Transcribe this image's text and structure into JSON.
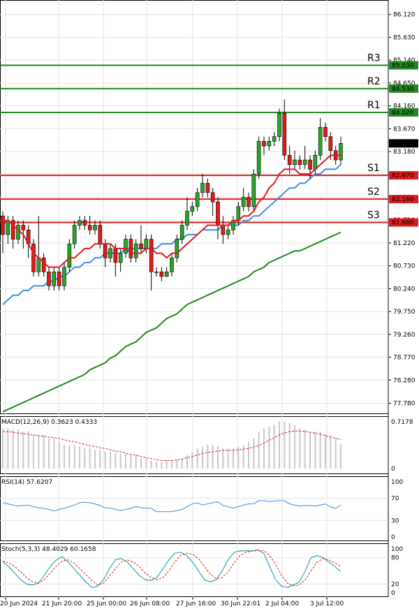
{
  "chart_data": {
    "type": "candlestick",
    "price_axis": {
      "ylim": [
        77.55,
        86.43
      ],
      "ticks": [
        "86.120",
        "85.630",
        "85.140",
        "84.650",
        "84.160",
        "83.670",
        "83.180",
        "82.690",
        "82.200",
        "81.710",
        "81.220",
        "80.730",
        "80.240",
        "79.750",
        "79.260",
        "78.770",
        "78.280",
        "77.780"
      ],
      "current_price": 83.355
    },
    "levels": [
      {
        "name": "R3",
        "price": 85.03,
        "price_label": "85.030",
        "color": "#1f8a1f"
      },
      {
        "name": "R2",
        "price": 84.53,
        "price_label": "84.530",
        "color": "#1f8a1f"
      },
      {
        "name": "R1",
        "price": 84.02,
        "price_label": "84.020",
        "color": "#1f8a1f"
      },
      {
        "name": "S1",
        "price": 82.67,
        "price_label": "82.670",
        "color": "#e01b1b"
      },
      {
        "name": "S2",
        "price": 82.16,
        "price_label": "82.160",
        "color": "#e01b1b"
      },
      {
        "name": "S3",
        "price": 81.66,
        "price_label": "81.660",
        "color": "#e01b1b"
      }
    ],
    "x_labels": [
      "20 Jun 2024",
      "21 Jun 20:00",
      "25 Jun 00:00",
      "26 Jun 08:00",
      "27 Jun 16:00",
      "30 Jun 22:01",
      "2 Jul 04:00",
      "3 Jul 12:00"
    ],
    "candles": [
      [
        81.8,
        81.4,
        81.9,
        81.0
      ],
      [
        81.4,
        81.7,
        81.8,
        81.2
      ],
      [
        81.7,
        81.3,
        81.8,
        81.1
      ],
      [
        81.3,
        81.6,
        81.7,
        81.2
      ],
      [
        81.6,
        81.5,
        81.7,
        81.1
      ],
      [
        81.5,
        81.2,
        81.6,
        80.9
      ],
      [
        81.2,
        80.6,
        81.3,
        80.5
      ],
      [
        80.6,
        80.9,
        81.8,
        80.5
      ],
      [
        80.9,
        80.6,
        81.0,
        80.5
      ],
      [
        80.6,
        80.3,
        80.7,
        80.2
      ],
      [
        80.3,
        80.6,
        80.7,
        80.2
      ],
      [
        80.6,
        80.3,
        80.7,
        80.2
      ],
      [
        80.3,
        80.7,
        80.8,
        80.2
      ],
      [
        80.7,
        81.2,
        81.3,
        80.6
      ],
      [
        81.2,
        81.6,
        81.7,
        81.1
      ],
      [
        81.6,
        81.7,
        81.8,
        81.5
      ],
      [
        81.7,
        81.6,
        81.8,
        81.5
      ],
      [
        81.6,
        81.5,
        81.8,
        81.4
      ],
      [
        81.5,
        81.6,
        81.7,
        81.4
      ],
      [
        81.6,
        81.2,
        81.7,
        81.1
      ],
      [
        81.2,
        80.9,
        81.3,
        80.7
      ],
      [
        80.9,
        81.1,
        81.2,
        80.8
      ],
      [
        81.1,
        80.8,
        81.2,
        80.5
      ],
      [
        80.8,
        81.0,
        81.1,
        80.6
      ],
      [
        81.0,
        81.3,
        81.4,
        80.9
      ],
      [
        81.3,
        80.9,
        81.4,
        80.8
      ],
      [
        80.9,
        81.2,
        81.3,
        80.8
      ],
      [
        81.2,
        81.1,
        81.6,
        81.0
      ],
      [
        81.1,
        81.3,
        81.4,
        81.0
      ],
      [
        81.3,
        80.6,
        81.4,
        80.2
      ],
      [
        80.6,
        80.6,
        80.7,
        80.5
      ],
      [
        80.6,
        80.5,
        80.7,
        80.4
      ],
      [
        80.5,
        80.6,
        80.7,
        80.5
      ],
      [
        80.6,
        80.9,
        81.0,
        80.5
      ],
      [
        80.9,
        81.3,
        81.4,
        80.8
      ],
      [
        81.3,
        81.6,
        81.7,
        81.2
      ],
      [
        81.6,
        81.9,
        82.2,
        81.5
      ],
      [
        81.9,
        82.0,
        82.1,
        81.8
      ],
      [
        82.0,
        82.3,
        82.4,
        81.9
      ],
      [
        82.3,
        82.5,
        82.7,
        82.2
      ],
      [
        82.5,
        82.3,
        82.6,
        82.2
      ],
      [
        82.3,
        82.1,
        82.4,
        81.8
      ],
      [
        82.1,
        81.6,
        82.2,
        81.3
      ],
      [
        81.6,
        81.4,
        81.8,
        81.2
      ],
      [
        81.4,
        81.5,
        81.6,
        81.3
      ],
      [
        81.5,
        81.7,
        81.8,
        81.4
      ],
      [
        81.7,
        82.0,
        82.1,
        81.6
      ],
      [
        82.0,
        82.2,
        82.4,
        81.9
      ],
      [
        82.2,
        82.0,
        82.3,
        81.9
      ],
      [
        82.0,
        82.7,
        82.8,
        81.9
      ],
      [
        82.7,
        83.4,
        83.5,
        82.6
      ],
      [
        83.4,
        83.3,
        83.5,
        83.1
      ],
      [
        83.3,
        83.4,
        83.5,
        83.2
      ],
      [
        83.4,
        83.5,
        83.6,
        83.3
      ],
      [
        83.5,
        84.0,
        84.1,
        83.4
      ],
      [
        84.0,
        83.1,
        84.3,
        83.0
      ],
      [
        83.1,
        82.9,
        83.3,
        82.7
      ],
      [
        82.9,
        83.0,
        83.2,
        82.8
      ],
      [
        83.0,
        82.9,
        83.1,
        82.8
      ],
      [
        82.9,
        83.0,
        83.3,
        82.8
      ],
      [
        83.0,
        82.8,
        83.1,
        82.6
      ],
      [
        82.8,
        83.1,
        83.2,
        82.7
      ],
      [
        83.1,
        83.7,
        83.9,
        83.0
      ],
      [
        83.7,
        83.5,
        83.8,
        83.4
      ],
      [
        83.5,
        83.2,
        83.6,
        83.0
      ],
      [
        83.2,
        83.0,
        83.3,
        82.9
      ],
      [
        83.0,
        83.355,
        83.5,
        82.9
      ]
    ],
    "sma_red": [
      81.7,
      81.7,
      81.6,
      81.5,
      81.4,
      81.2,
      81.0,
      80.9,
      80.8,
      80.7,
      80.7,
      80.7,
      80.8,
      80.9,
      80.9,
      81.0,
      81.1,
      81.1,
      81.2,
      81.2,
      81.2,
      81.2,
      81.1,
      81.1,
      81.1,
      81.0,
      81.0,
      81.0,
      81.1,
      81.1,
      81.0,
      81.0,
      80.9,
      81.0,
      81.0,
      81.1,
      81.2,
      81.3,
      81.4,
      81.5,
      81.6,
      81.6,
      81.6,
      81.6,
      81.6,
      81.7,
      81.7,
      81.8,
      81.8,
      81.9,
      82.1,
      82.2,
      82.4,
      82.5,
      82.7,
      82.8,
      82.8,
      82.8,
      82.7,
      82.7,
      82.7,
      82.8,
      82.9,
      83.0,
      83.1,
      83.1,
      83.1
    ],
    "sma_blue": [
      79.9,
      80.0,
      80.1,
      80.1,
      80.2,
      80.2,
      80.3,
      80.3,
      80.3,
      80.4,
      80.4,
      80.5,
      80.5,
      80.6,
      80.7,
      80.7,
      80.8,
      80.8,
      80.9,
      80.9,
      81.0,
      81.0,
      81.0,
      81.0,
      81.1,
      81.1,
      81.1,
      81.1,
      81.1,
      81.1,
      81.1,
      81.2,
      81.2,
      81.2,
      81.3,
      81.3,
      81.4,
      81.4,
      81.4,
      81.5,
      81.5,
      81.5,
      81.5,
      81.6,
      81.6,
      81.6,
      81.6,
      81.7,
      81.7,
      81.8,
      81.8,
      81.9,
      82.0,
      82.1,
      82.2,
      82.3,
      82.4,
      82.4,
      82.5,
      82.5,
      82.6,
      82.7,
      82.7,
      82.8,
      82.8,
      82.8,
      82.9
    ],
    "sma_green": [
      77.6,
      77.65,
      77.7,
      77.75,
      77.8,
      77.85,
      77.9,
      77.95,
      78.0,
      78.05,
      78.1,
      78.15,
      78.2,
      78.25,
      78.3,
      78.35,
      78.4,
      78.5,
      78.55,
      78.6,
      78.65,
      78.75,
      78.8,
      78.9,
      79.0,
      79.05,
      79.1,
      79.2,
      79.3,
      79.35,
      79.4,
      79.5,
      79.6,
      79.65,
      79.7,
      79.8,
      79.9,
      79.95,
      80.0,
      80.05,
      80.1,
      80.15,
      80.2,
      80.25,
      80.3,
      80.35,
      80.4,
      80.45,
      80.5,
      80.6,
      80.65,
      80.7,
      80.8,
      80.85,
      80.9,
      80.95,
      81.0,
      81.05,
      81.05,
      81.1,
      81.15,
      81.2,
      81.25,
      81.3,
      81.35,
      81.4,
      81.45
    ],
    "macd": {
      "label": "MACD(12,26,9) 0.3623 0.4333",
      "ticks": [
        "0.7178",
        "0"
      ],
      "ymax": 0.7178,
      "hist": [
        0.6,
        0.6,
        0.58,
        0.58,
        0.55,
        0.55,
        0.5,
        0.5,
        0.5,
        0.45,
        0.45,
        0.4,
        0.35,
        0.35,
        0.35,
        0.33,
        0.3,
        0.3,
        0.28,
        0.28,
        0.25,
        0.25,
        0.24,
        0.22,
        0.22,
        0.2,
        0.2,
        0.15,
        0.15,
        0.12,
        0.1,
        0.1,
        0.12,
        0.12,
        0.13,
        0.15,
        0.2,
        0.25,
        0.3,
        0.32,
        0.35,
        0.35,
        0.33,
        0.3,
        0.3,
        0.3,
        0.32,
        0.35,
        0.4,
        0.45,
        0.55,
        0.6,
        0.62,
        0.65,
        0.7,
        0.7,
        0.68,
        0.65,
        0.6,
        0.58,
        0.55,
        0.55,
        0.55,
        0.52,
        0.5,
        0.45,
        0.3623
      ],
      "signal": [
        0.55,
        0.55,
        0.54,
        0.53,
        0.52,
        0.51,
        0.5,
        0.49,
        0.48,
        0.47,
        0.46,
        0.45,
        0.43,
        0.41,
        0.4,
        0.38,
        0.36,
        0.34,
        0.33,
        0.31,
        0.3,
        0.28,
        0.26,
        0.25,
        0.23,
        0.21,
        0.2,
        0.18,
        0.16,
        0.15,
        0.13,
        0.12,
        0.12,
        0.12,
        0.13,
        0.14,
        0.16,
        0.18,
        0.2,
        0.22,
        0.24,
        0.25,
        0.26,
        0.27,
        0.27,
        0.27,
        0.28,
        0.29,
        0.3,
        0.32,
        0.34,
        0.38,
        0.42,
        0.46,
        0.5,
        0.53,
        0.55,
        0.56,
        0.56,
        0.55,
        0.54,
        0.53,
        0.51,
        0.49,
        0.47,
        0.45,
        0.4333
      ]
    },
    "rsi": {
      "label": "RSI(14) 57.6207",
      "ticks": [
        "100",
        "70",
        "30",
        "0"
      ],
      "values": [
        62,
        60,
        58,
        56,
        57,
        58,
        55,
        53,
        52,
        50,
        47,
        50,
        52,
        55,
        58,
        62,
        63,
        62,
        60,
        57,
        53,
        52,
        50,
        48,
        50,
        52,
        55,
        53,
        52,
        52,
        46,
        46,
        46,
        46,
        48,
        50,
        55,
        60,
        62,
        58,
        60,
        62,
        64,
        57,
        55,
        52,
        55,
        58,
        60,
        60,
        66,
        66,
        64,
        65,
        66,
        66,
        60,
        58,
        56,
        57,
        57,
        56,
        58,
        60,
        54,
        52,
        57.6207
      ]
    },
    "stoch": {
      "label": "Stoch(5,3,3) 48.4029 60.1658",
      "ticks": [
        "100",
        "80",
        "20",
        "0"
      ],
      "k": [
        70,
        60,
        45,
        30,
        20,
        18,
        22,
        40,
        60,
        75,
        82,
        70,
        55,
        40,
        25,
        12,
        15,
        30,
        55,
        75,
        78,
        70,
        55,
        40,
        30,
        28,
        35,
        55,
        75,
        90,
        92,
        85,
        70,
        50,
        30,
        25,
        30,
        50,
        75,
        92,
        95,
        96,
        95,
        98,
        90,
        60,
        30,
        15,
        12,
        18,
        25,
        50,
        80,
        85,
        80,
        70,
        60,
        48.4
      ],
      "d": [
        72,
        68,
        60,
        48,
        35,
        25,
        22,
        30,
        45,
        60,
        72,
        75,
        68,
        55,
        42,
        28,
        18,
        22,
        38,
        55,
        70,
        75,
        70,
        60,
        45,
        35,
        30,
        35,
        50,
        70,
        85,
        90,
        88,
        78,
        60,
        42,
        32,
        35,
        48,
        68,
        85,
        92,
        95,
        96,
        96,
        85,
        65,
        40,
        22,
        16,
        18,
        30,
        50,
        70,
        78,
        75,
        68,
        60.17
      ]
    }
  }
}
